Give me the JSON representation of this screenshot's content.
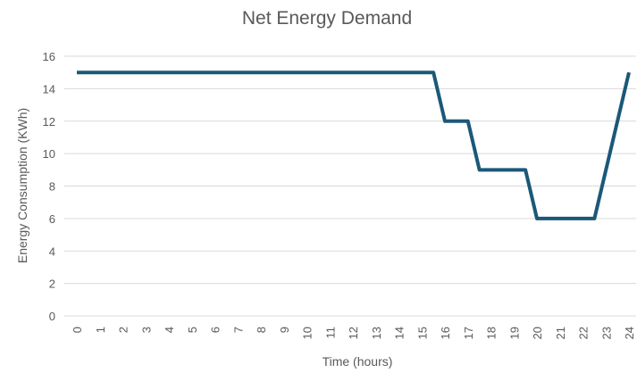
{
  "chart_data": {
    "type": "line",
    "title": "Net Energy Demand",
    "x_label": "Time (hours)",
    "y_label": "Energy Consumption (KWh)",
    "x": [
      0,
      15.5,
      16,
      17,
      17.5,
      19.5,
      20,
      22.5,
      24
    ],
    "values": [
      15,
      15,
      12,
      12,
      9,
      9,
      6,
      6,
      15
    ],
    "color": "#1b5878",
    "xlim": [
      0,
      24
    ],
    "xticks": [
      0,
      1,
      2,
      3,
      4,
      5,
      6,
      7,
      8,
      9,
      10,
      11,
      12,
      13,
      14,
      15,
      16,
      17,
      18,
      19,
      20,
      21,
      22,
      23,
      24
    ],
    "ylim": [
      0,
      16
    ],
    "yticks": [
      0,
      2,
      4,
      6,
      8,
      10,
      12,
      14,
      16
    ],
    "grid": true
  }
}
